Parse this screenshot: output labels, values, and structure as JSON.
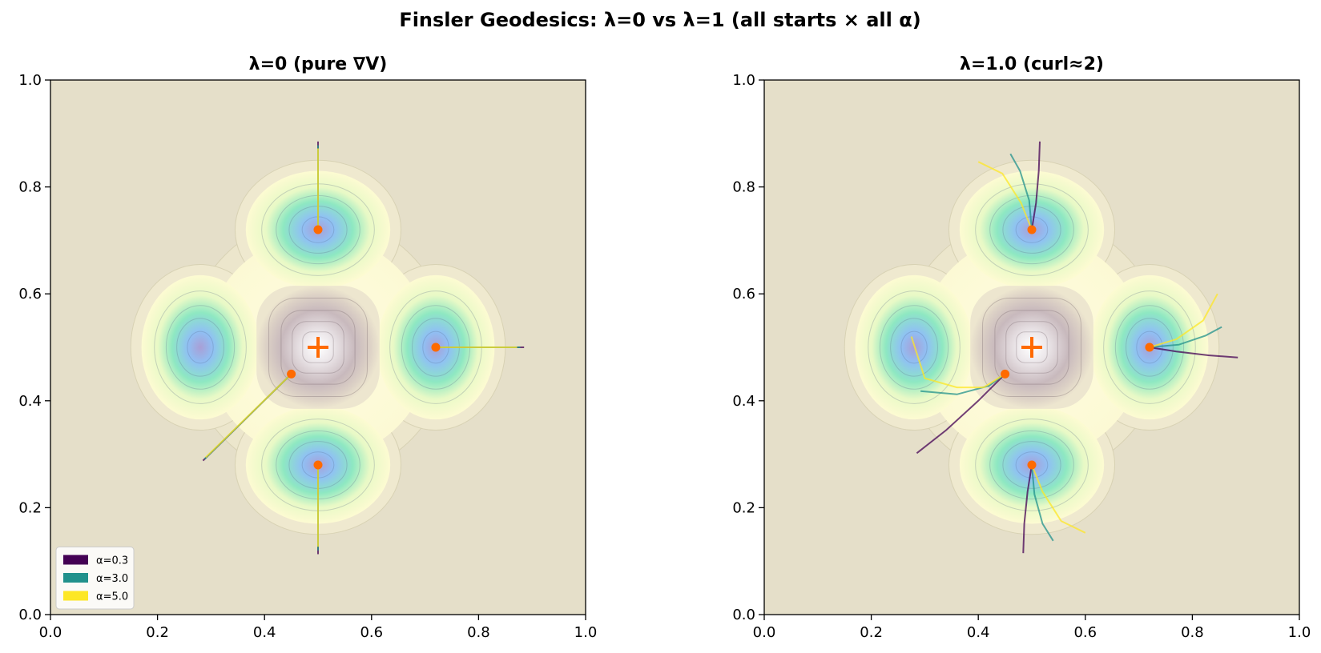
{
  "figure": {
    "suptitle": "Finsler Geodesics: λ=0 vs λ=1 (all starts × all α)",
    "background": "#e5dfc9"
  },
  "chart_data": [
    {
      "type": "line",
      "title": "λ=0 (pure ∇V)",
      "xlabel": "",
      "ylabel": "",
      "xlim": [
        0.0,
        1.0
      ],
      "ylim": [
        0.0,
        1.0
      ],
      "xticks": [
        "0.0",
        "0.2",
        "0.4",
        "0.6",
        "0.8",
        "1.0"
      ],
      "yticks": [
        "0.0",
        "0.2",
        "0.4",
        "0.6",
        "0.8",
        "1.0"
      ],
      "legend": {
        "placement": "lower-left",
        "entries": [
          {
            "label": "α=0.3",
            "color": "#440154"
          },
          {
            "label": "α=3.0",
            "color": "#21918c"
          },
          {
            "label": "α=5.0",
            "color": "#fde725"
          }
        ]
      },
      "center_marker": [
        0.5,
        0.5
      ],
      "start_points": [
        [
          0.5,
          0.72
        ],
        [
          0.72,
          0.5
        ],
        [
          0.5,
          0.28
        ],
        [
          0.45,
          0.45
        ]
      ],
      "series": [
        {
          "color": "#440154",
          "points": [
            [
              0.5,
              0.72
            ],
            [
              0.5,
              0.885
            ]
          ]
        },
        {
          "color": "#21918c",
          "points": [
            [
              0.5,
              0.72
            ],
            [
              0.5,
              0.878
            ]
          ]
        },
        {
          "color": "#fde725",
          "points": [
            [
              0.5,
              0.72
            ],
            [
              0.5,
              0.872
            ]
          ]
        },
        {
          "color": "#440154",
          "points": [
            [
              0.72,
              0.5
            ],
            [
              0.885,
              0.5
            ]
          ]
        },
        {
          "color": "#21918c",
          "points": [
            [
              0.72,
              0.5
            ],
            [
              0.878,
              0.5
            ]
          ]
        },
        {
          "color": "#fde725",
          "points": [
            [
              0.72,
              0.5
            ],
            [
              0.872,
              0.5
            ]
          ]
        },
        {
          "color": "#440154",
          "points": [
            [
              0.5,
              0.28
            ],
            [
              0.5,
              0.113
            ]
          ]
        },
        {
          "color": "#21918c",
          "points": [
            [
              0.5,
              0.28
            ],
            [
              0.5,
              0.12
            ]
          ]
        },
        {
          "color": "#fde725",
          "points": [
            [
              0.5,
              0.28
            ],
            [
              0.5,
              0.127
            ]
          ]
        },
        {
          "color": "#440154",
          "points": [
            [
              0.45,
              0.45
            ],
            [
              0.285,
              0.288
            ]
          ]
        },
        {
          "color": "#21918c",
          "points": [
            [
              0.45,
              0.45
            ],
            [
              0.288,
              0.291
            ]
          ]
        },
        {
          "color": "#fde725",
          "points": [
            [
              0.45,
              0.45
            ],
            [
              0.29,
              0.294
            ]
          ]
        }
      ]
    },
    {
      "type": "line",
      "title": "λ=1.0 (curl≈2)",
      "xlabel": "",
      "ylabel": "",
      "xlim": [
        0.0,
        1.0
      ],
      "ylim": [
        0.0,
        1.0
      ],
      "xticks": [
        "0.0",
        "0.2",
        "0.4",
        "0.6",
        "0.8",
        "1.0"
      ],
      "yticks": [
        "0.0",
        "0.2",
        "0.4",
        "0.6",
        "0.8",
        "1.0"
      ],
      "center_marker": [
        0.5,
        0.5
      ],
      "start_points": [
        [
          0.5,
          0.72
        ],
        [
          0.72,
          0.5
        ],
        [
          0.5,
          0.28
        ],
        [
          0.45,
          0.45
        ]
      ],
      "series": [
        {
          "color": "#440154",
          "points": [
            [
              0.5,
              0.72
            ],
            [
              0.508,
              0.77
            ],
            [
              0.513,
              0.83
            ],
            [
              0.515,
              0.885
            ]
          ]
        },
        {
          "color": "#21918c",
          "points": [
            [
              0.5,
              0.72
            ],
            [
              0.495,
              0.775
            ],
            [
              0.478,
              0.83
            ],
            [
              0.46,
              0.862
            ]
          ]
        },
        {
          "color": "#fde725",
          "points": [
            [
              0.5,
              0.72
            ],
            [
              0.48,
              0.77
            ],
            [
              0.445,
              0.825
            ],
            [
              0.4,
              0.847
            ]
          ]
        },
        {
          "color": "#440154",
          "points": [
            [
              0.72,
              0.5
            ],
            [
              0.77,
              0.492
            ],
            [
              0.83,
              0.485
            ],
            [
              0.885,
              0.481
            ]
          ]
        },
        {
          "color": "#21918c",
          "points": [
            [
              0.72,
              0.5
            ],
            [
              0.775,
              0.505
            ],
            [
              0.825,
              0.522
            ],
            [
              0.855,
              0.538
            ]
          ]
        },
        {
          "color": "#fde725",
          "points": [
            [
              0.72,
              0.5
            ],
            [
              0.77,
              0.515
            ],
            [
              0.82,
              0.55
            ],
            [
              0.847,
              0.6
            ]
          ]
        },
        {
          "color": "#440154",
          "points": [
            [
              0.5,
              0.28
            ],
            [
              0.492,
              0.23
            ],
            [
              0.486,
              0.17
            ],
            [
              0.484,
              0.115
            ]
          ]
        },
        {
          "color": "#21918c",
          "points": [
            [
              0.5,
              0.28
            ],
            [
              0.505,
              0.225
            ],
            [
              0.52,
              0.17
            ],
            [
              0.54,
              0.138
            ]
          ]
        },
        {
          "color": "#fde725",
          "points": [
            [
              0.5,
              0.28
            ],
            [
              0.52,
              0.23
            ],
            [
              0.555,
              0.175
            ],
            [
              0.6,
              0.153
            ]
          ]
        },
        {
          "color": "#440154",
          "points": [
            [
              0.45,
              0.45
            ],
            [
              0.4,
              0.4
            ],
            [
              0.34,
              0.345
            ],
            [
              0.285,
              0.302
            ]
          ]
        },
        {
          "color": "#21918c",
          "points": [
            [
              0.45,
              0.45
            ],
            [
              0.42,
              0.428
            ],
            [
              0.36,
              0.412
            ],
            [
              0.292,
              0.418
            ]
          ]
        },
        {
          "color": "#fde725",
          "points": [
            [
              0.45,
              0.45
            ],
            [
              0.41,
              0.425
            ],
            [
              0.36,
              0.425
            ],
            [
              0.3,
              0.442
            ],
            [
              0.275,
              0.52
            ]
          ]
        }
      ]
    }
  ]
}
